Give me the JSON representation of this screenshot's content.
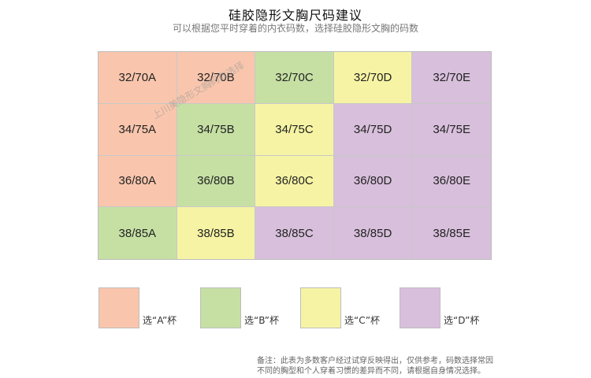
{
  "title": "硅胶隐形文胸尺码建议",
  "subtitle": "可以根据您平时穿着的内衣码数，选择硅胶隐形文胸的码数",
  "watermark": "上川美隐形文胸码数选择",
  "colors": {
    "A": "#f9c6ad",
    "B": "#c6e0a4",
    "C": "#f6f4a4",
    "D": "#d8bfdc"
  },
  "grid": {
    "rows": [
      [
        {
          "label": "32/70A",
          "cup": "A"
        },
        {
          "label": "32/70B",
          "cup": "A"
        },
        {
          "label": "32/70C",
          "cup": "B"
        },
        {
          "label": "32/70D",
          "cup": "C"
        },
        {
          "label": "32/70E",
          "cup": "D"
        }
      ],
      [
        {
          "label": "34/75A",
          "cup": "A"
        },
        {
          "label": "34/75B",
          "cup": "B"
        },
        {
          "label": "34/75C",
          "cup": "C"
        },
        {
          "label": "34/75D",
          "cup": "D"
        },
        {
          "label": "34/75E",
          "cup": "D"
        }
      ],
      [
        {
          "label": "36/80A",
          "cup": "A"
        },
        {
          "label": "36/80B",
          "cup": "B"
        },
        {
          "label": "36/80C",
          "cup": "C"
        },
        {
          "label": "36/80D",
          "cup": "D"
        },
        {
          "label": "36/80E",
          "cup": "D"
        }
      ],
      [
        {
          "label": "38/85A",
          "cup": "B"
        },
        {
          "label": "38/85B",
          "cup": "C"
        },
        {
          "label": "38/85C",
          "cup": "D"
        },
        {
          "label": "38/85D",
          "cup": "D"
        },
        {
          "label": "38/85E",
          "cup": "D"
        }
      ]
    ]
  },
  "legend": [
    {
      "cup": "A",
      "label": "选“A”杯"
    },
    {
      "cup": "B",
      "label": "选“B”杯"
    },
    {
      "cup": "C",
      "label": "选“C”杯"
    },
    {
      "cup": "D",
      "label": "选“D”杯"
    }
  ],
  "note": {
    "line1": "备注：此表为多数客户经过试穿反映得出，仅供参考，码数选择常因",
    "line2": "不同的胸型和个人穿着习惯的差异而不同，请根据自身情况选择。"
  }
}
